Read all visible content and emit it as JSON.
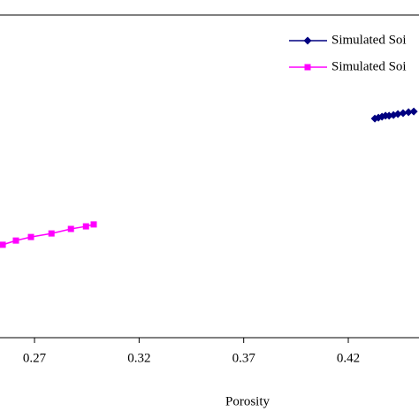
{
  "chart_data": {
    "type": "line",
    "x_label": "Porosity",
    "xlim": [
      0.2535,
      0.4538
    ],
    "xticks": [
      0.27,
      0.32,
      0.37,
      0.42
    ],
    "ylim": [
      0,
      1
    ],
    "legend": "top-right",
    "series": [
      {
        "name": "Simulated Soi",
        "color": "#000080",
        "marker": "diamond",
        "x": [
          0.4327,
          0.4344,
          0.4361,
          0.4378,
          0.4395,
          0.4416,
          0.4437,
          0.4462,
          0.4488,
          0.4513
        ],
        "values": [
          0.679,
          0.682,
          0.685,
          0.688,
          0.688,
          0.69,
          0.693,
          0.696,
          0.699,
          0.701
        ]
      },
      {
        "name": "Simulated Soi",
        "color": "#ff00ff",
        "marker": "square",
        "x": [
          0.2548,
          0.2611,
          0.2683,
          0.2781,
          0.2874,
          0.2946,
          0.2983
        ],
        "values": [
          0.288,
          0.301,
          0.312,
          0.323,
          0.337,
          0.345,
          0.351
        ]
      }
    ]
  }
}
